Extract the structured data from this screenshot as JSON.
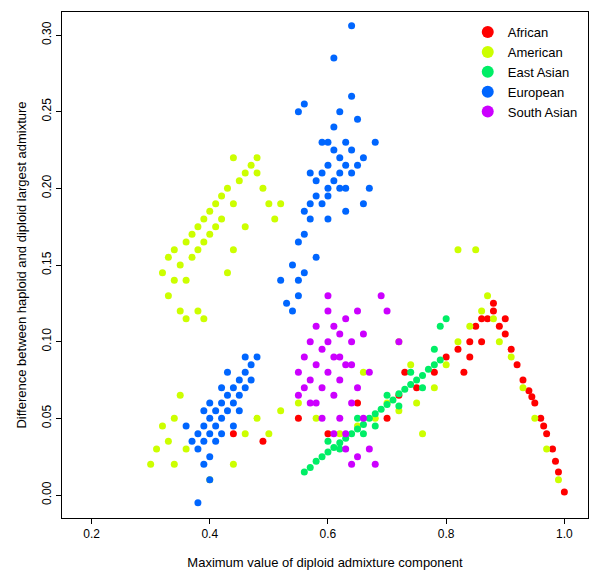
{
  "chart_data": {
    "type": "scatter",
    "x_label": "Maximum value of diploid admixture component",
    "y_label": "Difference between haploid and diploid largest admixture",
    "xlim": [
      0.15,
      1.04
    ],
    "ylim": [
      -0.015,
      0.315
    ],
    "xticks": [
      0.2,
      0.4,
      0.6,
      0.8,
      {
        "value": 1,
        "label": "1.0"
      }
    ],
    "yticks": [
      {
        "value": 0,
        "label": "0.00"
      },
      {
        "value": 0.05,
        "label": "0.05"
      },
      {
        "value": 0.1,
        "label": "0.10"
      },
      {
        "value": 0.15,
        "label": "0.15"
      },
      {
        "value": 0.2,
        "label": "0.20"
      },
      {
        "value": 0.25,
        "label": "0.25"
      },
      {
        "value": 0.3,
        "label": "0.30"
      }
    ],
    "grid": false,
    "legend": "top right",
    "marker": "circle",
    "series": [
      {
        "name": "African",
        "color": "#ff0000",
        "x": [
          0.44,
          0.49,
          0.55,
          0.6,
          0.65,
          0.72,
          0.75,
          0.78,
          0.8,
          0.82,
          0.84,
          0.85,
          0.86,
          0.87,
          0.88,
          0.88,
          0.89,
          0.9,
          0.91,
          0.92,
          0.93,
          0.94,
          0.95,
          0.96,
          0.97,
          0.98,
          0.99,
          1.0,
          0.86,
          0.84,
          0.83,
          0.7,
          0.73,
          0.9,
          0.945,
          0.965,
          0.985
        ],
        "values": [
          0.04,
          0.035,
          0.05,
          0.04,
          0.06,
          0.065,
          0.07,
          0.08,
          0.09,
          0.095,
          0.1,
          0.11,
          0.115,
          0.115,
          0.12,
          0.125,
          0.11,
          0.105,
          0.095,
          0.085,
          0.075,
          0.068,
          0.06,
          0.05,
          0.04,
          0.03,
          0.015,
          0.002,
          0.1,
          0.09,
          0.08,
          0.05,
          0.08,
          0.115,
          0.064,
          0.045,
          0.022
        ]
      },
      {
        "name": "American",
        "color": "#ccff00",
        "x": [
          0.32,
          0.33,
          0.33,
          0.34,
          0.34,
          0.35,
          0.35,
          0.36,
          0.36,
          0.37,
          0.37,
          0.38,
          0.38,
          0.39,
          0.39,
          0.4,
          0.4,
          0.41,
          0.41,
          0.42,
          0.42,
          0.43,
          0.44,
          0.45,
          0.46,
          0.47,
          0.48,
          0.49,
          0.5,
          0.51,
          0.52,
          0.39,
          0.38,
          0.36,
          0.44,
          0.46,
          0.43,
          0.48,
          0.44,
          0.3,
          0.31,
          0.32,
          0.33,
          0.34,
          0.35,
          0.36,
          0.34,
          0.48,
          0.5,
          0.52,
          0.55,
          0.58,
          0.62,
          0.65,
          0.68,
          0.7,
          0.72,
          0.75,
          0.78,
          0.8,
          0.82,
          0.84,
          0.86,
          0.87,
          0.88,
          0.85,
          0.82,
          0.89,
          0.91,
          0.93,
          0.95,
          0.97,
          0.99,
          0.76,
          0.66,
          0.72,
          0.74,
          0.46,
          0.44,
          0.4
        ],
        "values": [
          0.145,
          0.13,
          0.155,
          0.14,
          0.16,
          0.12,
          0.15,
          0.165,
          0.14,
          0.17,
          0.155,
          0.175,
          0.16,
          0.18,
          0.165,
          0.185,
          0.17,
          0.19,
          0.175,
          0.195,
          0.18,
          0.2,
          0.19,
          0.205,
          0.21,
          0.215,
          0.22,
          0.2,
          0.19,
          0.18,
          0.19,
          0.115,
          0.12,
          0.115,
          0.16,
          0.175,
          0.145,
          0.21,
          0.22,
          0.02,
          0.03,
          0.045,
          0.035,
          0.05,
          0.065,
          0.03,
          0.02,
          0.05,
          0.04,
          0.055,
          0.06,
          0.05,
          0.04,
          0.045,
          0.05,
          0.06,
          0.055,
          0.06,
          0.07,
          0.085,
          0.1,
          0.11,
          0.12,
          0.13,
          0.115,
          0.16,
          0.16,
          0.1,
          0.09,
          0.07,
          0.05,
          0.03,
          0.01,
          0.04,
          0.08,
          0.1,
          0.085,
          0.04,
          0.02,
          0.01
        ]
      },
      {
        "name": "East Asian",
        "color": "#00ee66",
        "x": [
          0.56,
          0.57,
          0.58,
          0.59,
          0.6,
          0.61,
          0.62,
          0.63,
          0.64,
          0.65,
          0.66,
          0.67,
          0.68,
          0.69,
          0.7,
          0.71,
          0.72,
          0.73,
          0.74,
          0.75,
          0.76,
          0.77,
          0.78,
          0.79,
          0.65,
          0.68,
          0.7,
          0.72,
          0.74,
          0.76,
          0.78,
          0.79,
          0.8,
          0.62,
          0.6,
          0.66
        ],
        "values": [
          0.015,
          0.018,
          0.022,
          0.025,
          0.028,
          0.031,
          0.034,
          0.037,
          0.04,
          0.043,
          0.046,
          0.05,
          0.053,
          0.056,
          0.059,
          0.062,
          0.066,
          0.069,
          0.072,
          0.075,
          0.078,
          0.082,
          0.085,
          0.088,
          0.05,
          0.045,
          0.065,
          0.058,
          0.08,
          0.07,
          0.095,
          0.11,
          0.115,
          0.03,
          0.035,
          0.04
        ]
      },
      {
        "name": "European",
        "color": "#0066ff",
        "x": [
          0.53,
          0.54,
          0.55,
          0.55,
          0.54,
          0.56,
          0.55,
          0.56,
          0.57,
          0.56,
          0.57,
          0.58,
          0.58,
          0.59,
          0.59,
          0.6,
          0.6,
          0.61,
          0.61,
          0.62,
          0.62,
          0.63,
          0.63,
          0.64,
          0.64,
          0.65,
          0.66,
          0.6,
          0.61,
          0.62,
          0.55,
          0.56,
          0.64,
          0.65,
          0.68,
          0.67,
          0.66,
          0.63,
          0.6,
          0.58,
          0.57,
          0.59,
          0.61,
          0.64,
          0.52,
          0.6,
          0.62,
          0.63,
          0.37,
          0.38,
          0.38,
          0.39,
          0.39,
          0.4,
          0.4,
          0.41,
          0.41,
          0.42,
          0.42,
          0.43,
          0.43,
          0.44,
          0.44,
          0.45,
          0.45,
          0.46,
          0.46,
          0.47,
          0.47,
          0.48,
          0.42,
          0.4,
          0.44,
          0.39,
          0.4,
          0.38,
          0.36,
          0.41,
          0.43,
          0.45,
          0.42,
          0.39,
          0.46,
          0.4
        ],
        "values": [
          0.125,
          0.12,
          0.13,
          0.14,
          0.15,
          0.145,
          0.165,
          0.17,
          0.18,
          0.185,
          0.19,
          0.195,
          0.205,
          0.19,
          0.21,
          0.2,
          0.215,
          0.205,
          0.225,
          0.21,
          0.22,
          0.2,
          0.215,
          0.21,
          0.225,
          0.215,
          0.22,
          0.23,
          0.24,
          0.25,
          0.25,
          0.255,
          0.26,
          0.245,
          0.23,
          0.2,
          0.19,
          0.185,
          0.18,
          0.155,
          0.21,
          0.23,
          0.285,
          0.306,
          0.14,
          0.195,
          0.2,
          0.23,
          0.035,
          0.04,
          0.03,
          0.045,
          0.035,
          0.05,
          0.04,
          0.055,
          0.045,
          0.06,
          0.05,
          0.065,
          0.055,
          0.07,
          0.06,
          0.075,
          0.065,
          0.08,
          0.07,
          0.085,
          0.075,
          0.09,
          0.07,
          0.06,
          0.045,
          0.02,
          0.01,
          -0.005,
          0.045,
          0.035,
          0.08,
          0.055,
          0.04,
          0.055,
          0.09,
          0.025
        ]
      },
      {
        "name": "South Asian",
        "color": "#cc00ff",
        "x": [
          0.55,
          0.56,
          0.56,
          0.57,
          0.57,
          0.58,
          0.58,
          0.59,
          0.59,
          0.6,
          0.6,
          0.6,
          0.61,
          0.61,
          0.62,
          0.62,
          0.62,
          0.63,
          0.63,
          0.63,
          0.64,
          0.64,
          0.65,
          0.65,
          0.66,
          0.67,
          0.68,
          0.64,
          0.65,
          0.69,
          0.7,
          0.66,
          0.58,
          0.57,
          0.61,
          0.63,
          0.59,
          0.55,
          0.6,
          0.62,
          0.67,
          0.72,
          0.61,
          0.64
        ],
        "values": [
          0.08,
          0.07,
          0.09,
          0.1,
          0.06,
          0.085,
          0.11,
          0.07,
          0.095,
          0.08,
          0.1,
          0.12,
          0.065,
          0.09,
          0.075,
          0.105,
          0.05,
          0.085,
          0.04,
          0.03,
          0.06,
          0.02,
          0.07,
          0.025,
          0.05,
          0.03,
          0.02,
          0.1,
          0.12,
          0.13,
          0.12,
          0.105,
          0.06,
          0.075,
          0.11,
          0.115,
          0.05,
          0.065,
          0.13,
          0.09,
          0.08,
          0.1,
          0.04,
          0.085
        ]
      }
    ]
  }
}
